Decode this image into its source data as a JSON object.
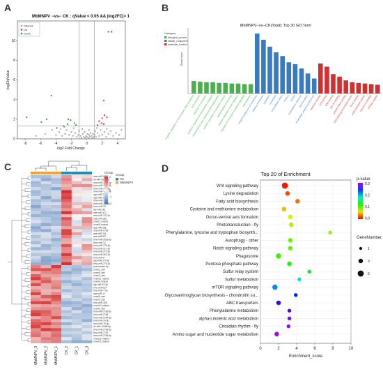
{
  "panels": [
    "A",
    "B",
    "C",
    "D"
  ],
  "chart_data": [
    {
      "id": "A",
      "type": "scatter",
      "title": "MbMNPV --vs-- CK : qValue < 0.05 && |log2FC|> 1",
      "xlabel": "log2 Fold Change",
      "ylabel": "-log10qValue",
      "xlim": [
        -9,
        5
      ],
      "ylim": [
        0,
        12
      ],
      "xticks": [
        -8,
        -6,
        -4,
        -2,
        0,
        2,
        4
      ],
      "yticks": [
        0,
        2,
        4,
        6,
        8,
        10
      ],
      "legend": [
        "Filtered",
        "Up",
        "Down"
      ],
      "legend_colors": [
        "#9aa0a6",
        "#e8272f",
        "#2e8b3a"
      ],
      "thresholds": {
        "log2fc": [
          -1,
          1
        ],
        "neg_log10_q": 1.3
      },
      "series": [
        {
          "name": "Up",
          "color": "#e8272f",
          "points": [
            [
              2.8,
              10.9
            ],
            [
              3.2,
              10.9
            ],
            [
              2.2,
              3.9
            ],
            [
              1.6,
              1.8
            ],
            [
              2.0,
              2.1
            ],
            [
              2.3,
              2.4
            ],
            [
              2.6,
              2.2
            ],
            [
              1.9,
              1.6
            ],
            [
              2.2,
              1.5
            ],
            [
              1.4,
              1.4
            ]
          ]
        },
        {
          "name": "Down",
          "color": "#2e8b3a",
          "points": [
            [
              -7.8,
              2.2
            ],
            [
              -5.9,
              1.7
            ],
            [
              -5.2,
              2.0
            ],
            [
              -4.6,
              4.4
            ],
            [
              -2.5,
              1.5
            ],
            [
              -2.1,
              1.9
            ],
            [
              -2.4,
              2.0
            ],
            [
              -1.6,
              1.6
            ],
            [
              -3.9,
              1.1
            ],
            [
              -1.4,
              1.4
            ],
            [
              -3.0,
              1.3
            ]
          ]
        },
        {
          "name": "Filtered",
          "color": "#9aa0a6",
          "points": [
            [
              -6.6,
              0.3
            ],
            [
              -5.4,
              0.5
            ],
            [
              -4.5,
              0.9
            ],
            [
              -4.0,
              0.4
            ],
            [
              -3.6,
              0.7
            ],
            [
              -3.2,
              0.3
            ],
            [
              -2.8,
              0.5
            ],
            [
              -2.6,
              0.9
            ],
            [
              -2.3,
              0.4
            ],
            [
              -2.0,
              0.7
            ],
            [
              -1.8,
              0.3
            ],
            [
              -1.5,
              0.6
            ],
            [
              -1.3,
              0.2
            ],
            [
              -1.1,
              0.4
            ],
            [
              -1.0,
              0.8
            ],
            [
              -0.8,
              0.3
            ],
            [
              -0.7,
              0.1
            ],
            [
              -0.5,
              0.5
            ],
            [
              -0.4,
              0.2
            ],
            [
              -0.3,
              0.7
            ],
            [
              -0.2,
              0.1
            ],
            [
              -0.1,
              0.3
            ],
            [
              0.0,
              0.2
            ],
            [
              0.1,
              0.5
            ],
            [
              0.2,
              0.1
            ],
            [
              0.3,
              0.4
            ],
            [
              0.4,
              0.2
            ],
            [
              0.5,
              0.6
            ],
            [
              0.6,
              0.3
            ],
            [
              0.7,
              0.1
            ],
            [
              0.8,
              0.5
            ],
            [
              0.9,
              0.2
            ],
            [
              1.0,
              0.4
            ],
            [
              1.1,
              0.8
            ],
            [
              1.2,
              0.2
            ],
            [
              1.4,
              0.6
            ],
            [
              1.6,
              0.3
            ],
            [
              1.8,
              0.9
            ],
            [
              2.0,
              0.4
            ],
            [
              2.3,
              0.7
            ],
            [
              2.5,
              0.2
            ],
            [
              2.8,
              0.5
            ],
            [
              3.1,
              0.8
            ],
            [
              3.4,
              0.3
            ],
            [
              3.8,
              0.6
            ],
            [
              4.2,
              0.4
            ],
            [
              4.5,
              0.9
            ],
            [
              -0.6,
              1.0
            ],
            [
              0.3,
              0.9
            ],
            [
              -1.7,
              1.1
            ],
            [
              -2.9,
              1.2
            ],
            [
              -3.4,
              1.0
            ],
            [
              1.3,
              1.1
            ],
            [
              2.6,
              1.0
            ]
          ]
        }
      ]
    },
    {
      "id": "B",
      "type": "bar",
      "title": "MbMNPV--vs--CK(Total): Top 30 GO Term",
      "ylabel": "Gene Num",
      "legend_title": "Category",
      "legend": [
        "biological_process",
        "cellular_component",
        "molecular_function"
      ],
      "colors": [
        "#4caf50",
        "#3a7bbf",
        "#d32f2f"
      ],
      "groups": [
        {
          "name": "biological_process",
          "count": 10
        },
        {
          "name": "cellular_component",
          "count": 10
        },
        {
          "name": "molecular_function",
          "count": 10
        }
      ],
      "categories": [
        "negative regulation of transcription, DNA-templated",
        "toxin transport",
        "response to nematode",
        "posterior regulation of cytoskeleton mediated",
        "mitochondrial outer membrane permeabilization",
        "positive regulation of apoptotic process",
        "signal peptide processing",
        "positive regulation of cell migration",
        "regulation of rhodopsin mediated signaling",
        "cell adhesion",
        "integral component of membrane",
        "plasma membrane",
        "cytoplasm",
        "membrane",
        "extracellular region",
        "nucleus",
        "cytosol",
        "endoplasmic reticulum",
        "mitochondrion",
        "intracellular anatomical structure",
        "metal ion binding",
        "ATP binding",
        "DNA binding",
        "zinc ion binding",
        "protein kinase activity",
        "DNA-binding transcription factor",
        "heme binding",
        "oxidoreductase activity",
        "calcium ion binding",
        "GTPase activity"
      ],
      "values": [
        20,
        19,
        18,
        18,
        17,
        17,
        16,
        16,
        15,
        15,
        96,
        86,
        75,
        66,
        60,
        50,
        47,
        40,
        32,
        24,
        48,
        43,
        31,
        27,
        21,
        18,
        17,
        16,
        15,
        14
      ],
      "ylim": [
        0,
        105
      ]
    },
    {
      "id": "C",
      "type": "heatmap",
      "legend_title": "Group",
      "legend": [
        "CK",
        "MbMNPV"
      ],
      "group_colors": [
        "#1f8fb5",
        "#f0a33a"
      ],
      "color_scale": {
        "min": -2,
        "max": 2,
        "ticks": [
          2,
          1,
          0,
          -1,
          -2
        ],
        "low": "#3b6fb6",
        "mid": "#f5f5f5",
        "high": "#d62f2f"
      },
      "columns": [
        "MbMNPV_3",
        "MbMNPV_2",
        "MbMNPV_1",
        "CK_2",
        "CK_1",
        "CK_3"
      ],
      "column_groups": [
        "MbMNPV",
        "MbMNPV",
        "MbMNPV",
        "CK",
        "CK",
        "CK"
      ],
      "rows": [
        "mse-miR-9598",
        "dh-miR-9598-3p",
        "bmo-miR-1175-3p",
        "bmo-miR-1175-5p",
        "bmo-miR-750-3p",
        "bmo-miR-1175-3p",
        "ago-miR-278",
        "ago-miR-279",
        "bmo-miR-281",
        "dme-miR-281-3p",
        "bmo-miR-33",
        "lsp-miR-281",
        "aae-miR-317",
        "bmo-miR-137-3p",
        "mse-miR-281",
        "novel7_mature",
        "novel8_mature",
        "aae-miR-281",
        "dme-miR-2765",
        "aae-miR-261",
        "aae-miR-927",
        "bmo-miR-263a-5p",
        "bmo-miR-12",
        "bmo-miR-276-3p",
        "bmo-miR-317-3p",
        "bmo-miR-375-3p",
        "bmo-miR-281-3p",
        "bmo-miR-9",
        "ago-miR-279-3p",
        "bmo-miR-276-3p",
        "pca-bantam-3p",
        "novel2_star",
        "novel6_star",
        "novel1_star",
        "novel11_mature",
        "novel4_mature",
        "dgr-miR-51-5p",
        "bmo-miR-927",
        "bmo-miR-7-5p",
        "aae-miR-10",
        "novel5_star",
        "novel3_star",
        "bmo-miR-308",
        "novel10_mature",
        "novel9_star",
        "bmo-miR-2766-5p",
        "bmo-miR-2765",
        "bmo-miR-2764-3p",
        "bmo-miR-10-3p",
        "bmo-miR-79-3p",
        "dh-miR-10468-5p",
        "bmo-miR-2763-5p",
        "bmo-miR-2767",
        "bmo-miR-2765-5p",
        "novel13_mature",
        "novel12_mature"
      ],
      "upper_block_rows": 30
    },
    {
      "id": "D",
      "type": "scatter",
      "title": "Top 20 of Enrichment",
      "xlabel": "Enrichment_score",
      "xlim": [
        0,
        10
      ],
      "xticks": [
        0,
        2,
        4,
        6,
        8,
        10
      ],
      "pvalue_legend": {
        "title": "p-value",
        "ticks": [
          0.3,
          0.2,
          0.1,
          0.0
        ]
      },
      "size_legend": {
        "title": "GeneNumber",
        "values": [
          1,
          3,
          5
        ]
      },
      "categories": [
        "Wnt signaling pathway",
        "Lysine degradation",
        "Fatty acid biosynthesis",
        "Cysteine and methionine metabolism",
        "Dorso-ventral axis formation",
        "Phototransduction - fly",
        "Phenylalanine, tyrosine and tryptophan biosynth...",
        "Autophagy - other",
        "Notch signaling pathway",
        "Phagosome",
        "Pentose phosphate pathway",
        "Sulfur relay system",
        "Sulfur metabolism",
        "mTOR signaling pathway",
        "Glycosaminoglycan biosynthesis - chondroitin su...",
        "ABC transporters",
        "Phenylalanine metabolism",
        "alpha-Linolenic acid metabolism",
        "Circadian rhythm - fly",
        "Amino sugar and nucleotide sugar metabolism"
      ],
      "points": [
        {
          "x": 2.7,
          "p": 0.005,
          "n": 5
        },
        {
          "x": 3.0,
          "p": 0.02,
          "n": 3
        },
        {
          "x": 4.1,
          "p": 0.03,
          "n": 3
        },
        {
          "x": 2.6,
          "p": 0.05,
          "n": 3
        },
        {
          "x": 3.3,
          "p": 0.07,
          "n": 3
        },
        {
          "x": 3.4,
          "p": 0.08,
          "n": 3
        },
        {
          "x": 7.7,
          "p": 0.09,
          "n": 2
        },
        {
          "x": 3.3,
          "p": 0.1,
          "n": 3
        },
        {
          "x": 3.3,
          "p": 0.1,
          "n": 3
        },
        {
          "x": 2.0,
          "p": 0.11,
          "n": 4
        },
        {
          "x": 3.2,
          "p": 0.12,
          "n": 3
        },
        {
          "x": 5.4,
          "p": 0.14,
          "n": 2
        },
        {
          "x": 4.3,
          "p": 0.2,
          "n": 2
        },
        {
          "x": 1.6,
          "p": 0.22,
          "n": 4
        },
        {
          "x": 3.9,
          "p": 0.25,
          "n": 2
        },
        {
          "x": 2.0,
          "p": 0.27,
          "n": 3
        },
        {
          "x": 3.2,
          "p": 0.28,
          "n": 2
        },
        {
          "x": 3.2,
          "p": 0.29,
          "n": 2
        },
        {
          "x": 3.1,
          "p": 0.3,
          "n": 2
        },
        {
          "x": 1.8,
          "p": 0.3,
          "n": 3
        }
      ]
    }
  ]
}
